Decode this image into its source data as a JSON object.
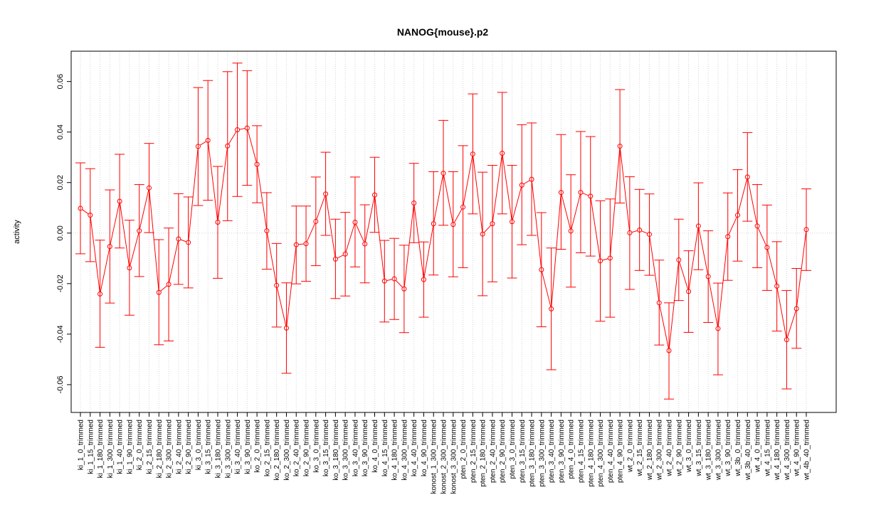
{
  "chart_data": {
    "type": "line",
    "title": "NANOG{mouse}.p2",
    "xlabel": "",
    "ylabel": "activity",
    "ylim": [
      -0.071,
      0.072
    ],
    "yticks": [
      -0.06,
      -0.04,
      -0.02,
      0.0,
      0.02,
      0.04,
      0.06
    ],
    "ytick_labels": [
      "-0.06",
      "-0.04",
      "-0.02",
      "0.00",
      "0.02",
      "0.04",
      "0.06"
    ],
    "grid": true,
    "series_color": "#ff0000",
    "grid_color": "#d3d3d3",
    "categories": [
      "ki_1_0_trimmed",
      "ki_1_15_trimmed",
      "ki_1_180_trimmed",
      "ki_1_300_trimmed",
      "ki_1_40_trimmed",
      "ki_1_90_trimmed",
      "ki_2_0_trimmed",
      "ki_2_15_trimmed",
      "ki_2_180_trimmed",
      "ki_2_300_trimmed",
      "ki_2_40_trimmed",
      "ki_2_90_trimmed",
      "ki_3_0_trimmed",
      "ki_3_15_trimmed",
      "ki_3_180_trimmed",
      "ki_3_300_trimmed",
      "ki_3_40_trimmed",
      "ki_3_90_trimmed",
      "ko_2_0_trimmed",
      "ko_2_15_trimmed",
      "ko_2_180_trimmed",
      "ko_2_300_trimmed",
      "ko_2_40_trimmed",
      "ko_2_90_trimmed",
      "ko_3_0_trimmed",
      "ko_3_15_trimmed",
      "ko_3_180_trimmed",
      "ko_3_300_trimmed",
      "ko_3_40_trimmed",
      "ko_3_90_trimmed",
      "ko_4_0_trimmed",
      "ko_4_15_trimmed",
      "ko_4_180_trimmed",
      "ko_4_300_trimmed",
      "ko_4_40_trimmed",
      "ko_4_90_trimmed",
      "konost_1_300_trimmed",
      "konost_2_300_trimmed",
      "konost_3_300_trimmed",
      "pten_2_0_trimmed",
      "pten_2_15_trimmed",
      "pten_2_180_trimmed",
      "pten_2_40_trimmed",
      "pten_2_90_trimmed",
      "pten_3_0_trimmed",
      "pten_3_15_trimmed",
      "pten_3_180_trimmed",
      "pten_3_300_trimmed",
      "pten_3_40_trimmed",
      "pten_3_90_trimmed",
      "pten_4_0_trimmed",
      "pten_4_15_trimmed",
      "pten_4_180_trimmed",
      "pten_4_300_trimmed",
      "pten_4_40_trimmed",
      "pten_4_90_trimmed",
      "wt_2_0_trimmed",
      "wt_2_15_trimmed",
      "wt_2_180_trimmed",
      "wt_2_300_trimmed",
      "wt_2_40_trimmed",
      "wt_2_90_trimmed",
      "wt_3_0_trimmed",
      "wt_3_15_trimmed",
      "wt_3_180_trimmed",
      "wt_3_300_trimmed",
      "wt_3_90_trimmed",
      "wt_3b_0_trimmed",
      "wt_3b_40_trimmed",
      "wt_4_0_trimmed",
      "wt_4_15_trimmed",
      "wt_4_180_trimmed",
      "wt_4_300_trimmed",
      "wt_4_90_trimmed",
      "wt_4b_40_trimmed"
    ],
    "values": [
      0.0098,
      0.0071,
      -0.0241,
      -0.0053,
      0.0126,
      -0.0138,
      0.0009,
      0.0179,
      -0.0235,
      -0.0203,
      -0.0023,
      -0.0037,
      0.0343,
      0.0367,
      0.0043,
      0.0345,
      0.0409,
      0.0416,
      0.0272,
      0.0009,
      -0.0207,
      -0.0376,
      -0.0046,
      -0.0042,
      0.0046,
      0.0155,
      -0.0103,
      -0.0083,
      0.0043,
      -0.0043,
      0.0151,
      -0.019,
      -0.0181,
      -0.0221,
      0.0119,
      -0.0184,
      0.0037,
      0.0237,
      0.0034,
      0.0103,
      0.0313,
      -0.0004,
      0.0037,
      0.0316,
      0.0045,
      0.019,
      0.0213,
      -0.0145,
      -0.03,
      0.0161,
      0.0008,
      0.0161,
      0.0146,
      -0.011,
      -0.0099,
      0.0344,
      0.0001,
      0.0012,
      -0.0005,
      -0.0276,
      -0.0465,
      -0.0106,
      -0.0231,
      0.0028,
      -0.0172,
      -0.0378,
      -0.0014,
      0.0071,
      0.0222,
      0.0028,
      -0.0057,
      -0.021,
      -0.0422,
      -0.0299,
      0.0014
    ],
    "lower": [
      -0.0082,
      -0.0113,
      -0.0452,
      -0.0277,
      -0.0059,
      -0.0325,
      -0.0172,
      0.0002,
      -0.0442,
      -0.0427,
      -0.0203,
      -0.0217,
      0.0109,
      0.013,
      -0.0179,
      0.0049,
      0.0145,
      0.0189,
      0.012,
      -0.0143,
      -0.0372,
      -0.0555,
      -0.0201,
      -0.0191,
      -0.0129,
      -0.0009,
      -0.0259,
      -0.0249,
      -0.0134,
      -0.0197,
      0.0003,
      -0.0352,
      -0.0342,
      -0.0394,
      -0.0038,
      -0.0333,
      -0.0166,
      0.0031,
      -0.0173,
      -0.0137,
      0.0076,
      -0.0248,
      -0.0193,
      0.0076,
      -0.0178,
      -0.0046,
      -0.0009,
      -0.0371,
      -0.0541,
      -0.0064,
      -0.0214,
      -0.0078,
      -0.0091,
      -0.0349,
      -0.0333,
      0.0119,
      -0.0223,
      -0.0148,
      -0.0167,
      -0.0443,
      -0.0657,
      -0.0267,
      -0.0393,
      -0.0145,
      -0.0354,
      -0.0561,
      -0.0187,
      -0.0111,
      0.0047,
      -0.0137,
      -0.0227,
      -0.0388,
      -0.0617,
      -0.0456,
      -0.0148
    ],
    "upper": [
      0.0278,
      0.0255,
      -0.0028,
      0.0171,
      0.0312,
      0.0051,
      0.0192,
      0.0355,
      -0.0026,
      0.002,
      0.0156,
      0.0143,
      0.0576,
      0.0604,
      0.0264,
      0.0639,
      0.0673,
      0.0643,
      0.0425,
      0.016,
      -0.0041,
      -0.0197,
      0.0107,
      0.0107,
      0.0222,
      0.032,
      0.0055,
      0.0082,
      0.0222,
      0.0112,
      0.03,
      -0.0029,
      -0.0021,
      -0.0048,
      0.0276,
      -0.0035,
      0.0243,
      0.0446,
      0.0243,
      0.0346,
      0.0551,
      0.0241,
      0.0268,
      0.0557,
      0.0268,
      0.0429,
      0.0436,
      0.0081,
      -0.0059,
      0.039,
      0.0231,
      0.0402,
      0.0382,
      0.0128,
      0.0135,
      0.0568,
      0.0223,
      0.0173,
      0.0155,
      -0.0107,
      -0.0276,
      0.0055,
      -0.007,
      0.0199,
      0.0009,
      -0.0198,
      0.0159,
      0.0251,
      0.0398,
      0.0192,
      0.0111,
      -0.0034,
      -0.0227,
      -0.014,
      0.0175
    ]
  }
}
